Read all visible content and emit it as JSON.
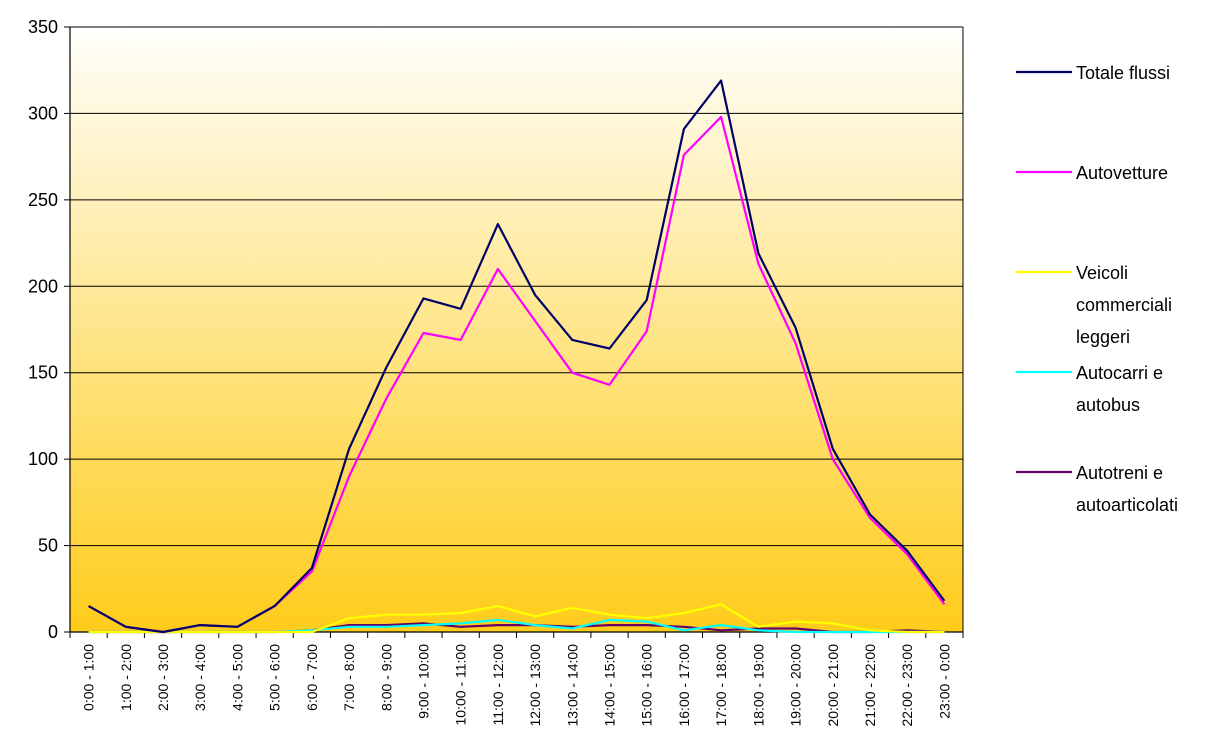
{
  "chart_data": {
    "type": "line",
    "title": "",
    "xlabel": "",
    "ylabel": "",
    "ylim": [
      0,
      350
    ],
    "yticks": [
      0,
      50,
      100,
      150,
      200,
      250,
      300,
      350
    ],
    "grid": "horizontal",
    "legend_position": "right",
    "categories": [
      "0:00 - 1:00",
      "1:00 - 2:00",
      "2:00 - 3:00",
      "3:00 - 4:00",
      "4:00 - 5:00",
      "5:00 - 6:00",
      "6:00 - 7:00",
      "7:00 - 8:00",
      "8:00 - 9:00",
      "9:00 - 10:00",
      "10:00 - 11:00",
      "11:00 - 12:00",
      "12:00 - 13:00",
      "13:00 - 14:00",
      "14:00 - 15:00",
      "15:00 - 16:00",
      "16:00 - 17:00",
      "17:00 - 18:00",
      "18:00 - 19:00",
      "19:00 - 20:00",
      "20:00 - 21:00",
      "21:00 - 22:00",
      "22:00 - 23:00",
      "23:00 - 0:00"
    ],
    "series": [
      {
        "name": "Totale flussi",
        "legend_lines": [
          "Totale flussi"
        ],
        "color": "#000066",
        "values": [
          15,
          3,
          0,
          4,
          3,
          15,
          37,
          106,
          153,
          193,
          187,
          236,
          195,
          169,
          164,
          192,
          291,
          319,
          219,
          176,
          106,
          68,
          47,
          18
        ]
      },
      {
        "name": "Autovetture",
        "legend_lines": [
          "Autovetture"
        ],
        "color": "#ff00ff",
        "values": [
          15,
          3,
          0,
          4,
          3,
          15,
          35,
          90,
          135,
          173,
          169,
          210,
          180,
          150,
          143,
          174,
          276,
          298,
          213,
          167,
          100,
          66,
          45,
          16
        ]
      },
      {
        "name": "Veicoli commerciali leggeri",
        "legend_lines": [
          "Veicoli",
          "commerciali",
          "leggeri"
        ],
        "color": "#ffff00",
        "values": [
          0,
          0,
          0,
          0,
          0,
          0,
          0,
          8,
          10,
          10,
          11,
          15,
          9,
          14,
          10,
          8,
          11,
          16,
          3,
          6,
          5,
          1,
          0,
          0
        ]
      },
      {
        "name": "Autocarri e autobus",
        "legend_lines": [
          "Autocarri e",
          "autobus"
        ],
        "color": "#00ffff",
        "values": [
          0,
          0,
          0,
          0,
          0,
          0,
          1,
          3,
          3,
          4,
          5,
          7,
          4,
          2,
          7,
          6,
          1,
          4,
          1,
          0,
          0,
          0,
          0,
          0
        ]
      },
      {
        "name": "Autotreni e autoarticolati",
        "legend_lines": [
          "Autotreni e",
          "autoarticolati"
        ],
        "color": "#660066",
        "values": [
          0,
          0,
          0,
          0,
          0,
          0,
          1,
          4,
          4,
          5,
          3,
          4,
          4,
          3,
          4,
          4,
          3,
          1,
          2,
          2,
          0,
          0,
          1,
          0
        ]
      }
    ]
  },
  "background": {
    "top_color": "#fffffc",
    "bottom_color": "#ffcc1a"
  }
}
